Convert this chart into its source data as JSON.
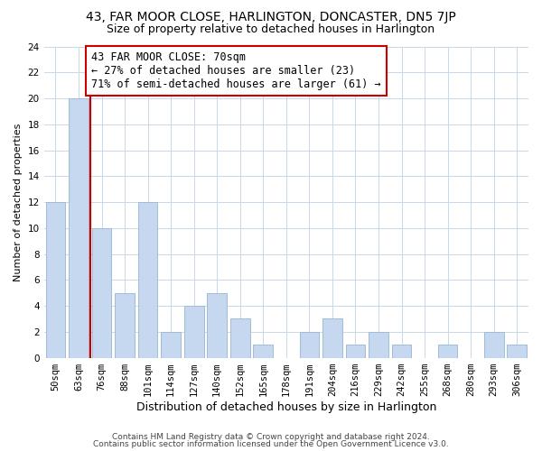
{
  "title": "43, FAR MOOR CLOSE, HARLINGTON, DONCASTER, DN5 7JP",
  "subtitle": "Size of property relative to detached houses in Harlington",
  "xlabel": "Distribution of detached houses by size in Harlington",
  "ylabel": "Number of detached properties",
  "bar_labels": [
    "50sqm",
    "63sqm",
    "76sqm",
    "88sqm",
    "101sqm",
    "114sqm",
    "127sqm",
    "140sqm",
    "152sqm",
    "165sqm",
    "178sqm",
    "191sqm",
    "204sqm",
    "216sqm",
    "229sqm",
    "242sqm",
    "255sqm",
    "268sqm",
    "280sqm",
    "293sqm",
    "306sqm"
  ],
  "bar_heights": [
    12,
    20,
    10,
    5,
    12,
    2,
    4,
    5,
    3,
    1,
    0,
    2,
    3,
    1,
    2,
    1,
    0,
    1,
    0,
    2,
    1
  ],
  "bar_color": "#c5d8f0",
  "bar_edge_color": "#a0bcd8",
  "marker_color": "#cc0000",
  "annotation_text": "43 FAR MOOR CLOSE: 70sqm\n← 27% of detached houses are smaller (23)\n71% of semi-detached houses are larger (61) →",
  "annotation_box_color": "#ffffff",
  "annotation_box_edge_color": "#cc0000",
  "ylim": [
    0,
    24
  ],
  "yticks": [
    0,
    2,
    4,
    6,
    8,
    10,
    12,
    14,
    16,
    18,
    20,
    22,
    24
  ],
  "footer_line1": "Contains HM Land Registry data © Crown copyright and database right 2024.",
  "footer_line2": "Contains public sector information licensed under the Open Government Licence v3.0.",
  "background_color": "#ffffff",
  "grid_color": "#c8d8e8",
  "title_fontsize": 10,
  "subtitle_fontsize": 9,
  "xlabel_fontsize": 9,
  "ylabel_fontsize": 8,
  "tick_fontsize": 7.5,
  "annotation_fontsize": 8.5,
  "footer_fontsize": 6.5
}
